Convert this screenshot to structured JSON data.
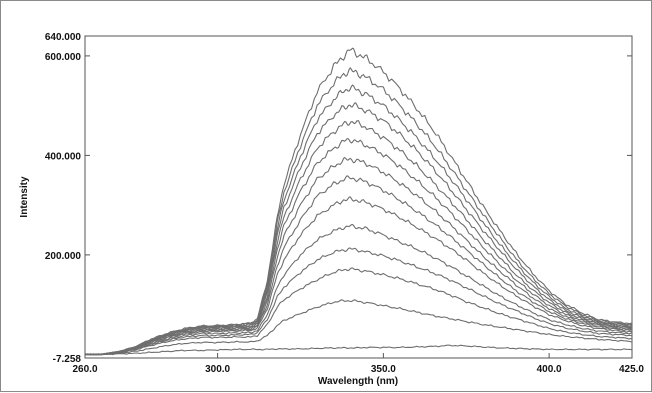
{
  "chart_data": {
    "type": "line",
    "title": "",
    "xlabel": "Wavelength (nm)",
    "ylabel": "Intensity",
    "xlim": [
      260.0,
      425.0
    ],
    "ylim": [
      -7.258,
      640.0
    ],
    "grid": false,
    "legend": "none",
    "x_ticks": [
      {
        "value": 260.0,
        "label": "260.0"
      },
      {
        "value": 300.0,
        "label": "300.0"
      },
      {
        "value": 350.0,
        "label": "350.0"
      },
      {
        "value": 400.0,
        "label": "400.0"
      },
      {
        "value": 425.0,
        "label": "425.0"
      }
    ],
    "y_ticks": [
      {
        "value": 640.0,
        "label": "640.000"
      },
      {
        "value": 600.0,
        "label": "600.000"
      },
      {
        "value": 400.0,
        "label": "400.000"
      },
      {
        "value": 200.0,
        "label": "200.000"
      },
      {
        "value": -7.258,
        "label": "-7.258"
      }
    ],
    "line_color": "#6e6e6e",
    "x": [
      260,
      265,
      270,
      275,
      280,
      285,
      290,
      295,
      300,
      305,
      310,
      312,
      315,
      318,
      320,
      325,
      330,
      335,
      338,
      340,
      342,
      345,
      350,
      355,
      360,
      365,
      370,
      375,
      380,
      385,
      390,
      395,
      400,
      405,
      410,
      415,
      420,
      425
    ],
    "series": [
      {
        "values": [
          0,
          0,
          1,
          2,
          4,
          6,
          8,
          8,
          9,
          10,
          10,
          10,
          10,
          11,
          11,
          11,
          12,
          13,
          13,
          13,
          13,
          14,
          14,
          14,
          15,
          16,
          18,
          17,
          15,
          13,
          12,
          11,
          10,
          10,
          10,
          10,
          10,
          10
        ]
      },
      {
        "values": [
          0,
          0,
          2,
          6,
          12,
          18,
          22,
          24,
          24,
          25,
          25,
          27,
          38,
          58,
          68,
          82,
          95,
          105,
          108,
          108,
          107,
          104,
          98,
          92,
          85,
          78,
          72,
          66,
          60,
          55,
          50,
          45,
          40,
          36,
          33,
          30,
          28,
          26
        ]
      },
      {
        "values": [
          0,
          0,
          3,
          9,
          18,
          26,
          31,
          34,
          34,
          35,
          35,
          38,
          60,
          95,
          110,
          132,
          150,
          165,
          170,
          172,
          170,
          167,
          160,
          152,
          142,
          132,
          120,
          106,
          94,
          82,
          72,
          62,
          52,
          45,
          40,
          36,
          34,
          32
        ]
      },
      {
        "values": [
          0,
          0,
          3,
          10,
          20,
          29,
          35,
          38,
          38,
          39,
          40,
          44,
          70,
          115,
          135,
          165,
          190,
          205,
          210,
          212,
          210,
          206,
          198,
          188,
          176,
          164,
          150,
          134,
          118,
          102,
          88,
          74,
          62,
          53,
          47,
          42,
          40,
          38
        ]
      },
      {
        "values": [
          0,
          0,
          4,
          11,
          22,
          31,
          38,
          42,
          42,
          43,
          44,
          48,
          80,
          135,
          160,
          200,
          230,
          248,
          255,
          258,
          256,
          252,
          240,
          226,
          212,
          196,
          178,
          158,
          138,
          118,
          100,
          84,
          70,
          60,
          52,
          47,
          44,
          42
        ]
      },
      {
        "values": [
          0,
          0,
          4,
          12,
          24,
          34,
          41,
          45,
          46,
          47,
          48,
          53,
          92,
          160,
          190,
          240,
          278,
          300,
          310,
          312,
          310,
          305,
          292,
          275,
          256,
          236,
          214,
          190,
          164,
          140,
          118,
          98,
          80,
          68,
          58,
          52,
          48,
          45
        ]
      },
      {
        "values": [
          0,
          0,
          4,
          12,
          25,
          35,
          43,
          47,
          48,
          49,
          50,
          56,
          100,
          178,
          215,
          270,
          318,
          342,
          352,
          355,
          352,
          346,
          330,
          310,
          288,
          264,
          238,
          210,
          182,
          154,
          128,
          106,
          86,
          72,
          62,
          55,
          51,
          48
        ]
      },
      {
        "values": [
          0,
          0,
          5,
          13,
          26,
          37,
          45,
          49,
          50,
          51,
          52,
          58,
          108,
          196,
          238,
          300,
          352,
          378,
          390,
          392,
          390,
          383,
          366,
          344,
          320,
          292,
          262,
          230,
          198,
          168,
          140,
          114,
          92,
          76,
          65,
          58,
          53,
          50
        ]
      },
      {
        "values": [
          0,
          0,
          5,
          13,
          27,
          38,
          46,
          51,
          52,
          53,
          54,
          61,
          116,
          212,
          258,
          328,
          384,
          414,
          428,
          432,
          428,
          420,
          402,
          378,
          350,
          320,
          287,
          252,
          216,
          182,
          150,
          122,
          98,
          80,
          68,
          60,
          55,
          52
        ]
      },
      {
        "values": [
          0,
          0,
          5,
          14,
          28,
          39,
          48,
          53,
          54,
          55,
          56,
          63,
          124,
          226,
          276,
          352,
          414,
          448,
          462,
          468,
          465,
          456,
          436,
          410,
          380,
          346,
          310,
          272,
          232,
          196,
          160,
          130,
          104,
          84,
          71,
          62,
          57,
          54
        ]
      },
      {
        "values": [
          0,
          0,
          5,
          14,
          28,
          40,
          49,
          54,
          55,
          56,
          58,
          66,
          130,
          240,
          294,
          376,
          444,
          480,
          496,
          502,
          498,
          490,
          470,
          442,
          410,
          374,
          334,
          292,
          250,
          210,
          172,
          138,
          110,
          88,
          74,
          64,
          59,
          56
        ]
      },
      {
        "values": [
          0,
          0,
          5,
          14,
          29,
          41,
          50,
          55,
          56,
          58,
          60,
          68,
          136,
          252,
          310,
          398,
          472,
          512,
          530,
          536,
          532,
          522,
          500,
          470,
          436,
          398,
          356,
          312,
          266,
          222,
          182,
          146,
          116,
          92,
          77,
          66,
          61,
          58
        ]
      },
      {
        "values": [
          0,
          0,
          5,
          15,
          30,
          42,
          51,
          56,
          57,
          59,
          62,
          70,
          142,
          264,
          326,
          420,
          500,
          544,
          564,
          570,
          566,
          556,
          532,
          500,
          464,
          424,
          378,
          330,
          282,
          236,
          192,
          154,
          122,
          97,
          80,
          68,
          63,
          60
        ]
      },
      {
        "values": [
          0,
          0,
          5,
          15,
          31,
          43,
          52,
          57,
          58,
          60,
          63,
          72,
          148,
          276,
          342,
          442,
          528,
          578,
          600,
          612,
          605,
          594,
          568,
          534,
          495,
          452,
          402,
          350,
          298,
          250,
          204,
          163,
          128,
          101,
          83,
          70,
          65,
          62
        ]
      }
    ]
  }
}
